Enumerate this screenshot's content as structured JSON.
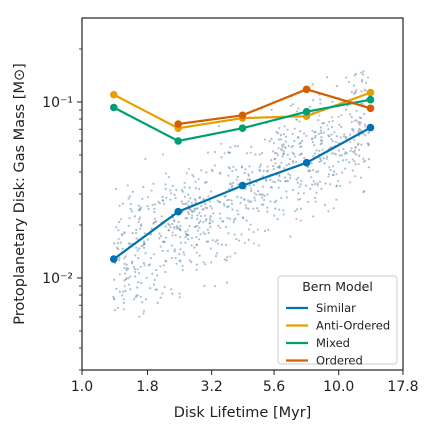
{
  "chart_data": {
    "type": "line",
    "title": "",
    "xlabel": "Disk Lifetime [Myr]",
    "ylabel": "Protoplanetary Disk: Gas Mass [M⊙]",
    "x_scale": "log",
    "y_scale": "log",
    "xlim": [
      1.0,
      17.8
    ],
    "ylim": [
      0.003,
      0.3
    ],
    "x_ticks": [
      1.0,
      1.8,
      3.2,
      5.6,
      10.0,
      17.8
    ],
    "x_tick_labels": [
      "1.0",
      "1.8",
      "3.2",
      "5.6",
      "10.0",
      "17.8"
    ],
    "y_ticks": [
      0.01,
      0.1
    ],
    "y_tick_labels": [
      "10⁻²",
      "10⁻¹"
    ],
    "grid": false,
    "legend": {
      "title": "Bern Model",
      "placement": "lower-right"
    },
    "series": [
      {
        "name": "Similar",
        "color": "#0072b2",
        "x": [
          1.33,
          2.37,
          4.22,
          7.5,
          13.3
        ],
        "y": [
          0.0128,
          0.0238,
          0.0335,
          0.0452,
          0.0715
        ]
      },
      {
        "name": "Anti-Ordered",
        "color": "#e69f00",
        "x": [
          1.33,
          2.37,
          4.22,
          7.5,
          13.3
        ],
        "y": [
          0.11,
          0.071,
          0.081,
          0.083,
          0.113
        ]
      },
      {
        "name": "Mixed",
        "color": "#009e73",
        "x": [
          1.33,
          2.37,
          4.22,
          7.5,
          13.3
        ],
        "y": [
          0.093,
          0.06,
          0.071,
          0.088,
          0.103
        ]
      },
      {
        "name": "Ordered",
        "color": "#d55e00",
        "x": [
          2.37,
          4.22,
          7.5,
          13.3
        ],
        "y": [
          0.075,
          0.084,
          0.118,
          0.092
        ]
      }
    ],
    "scatter_background": {
      "description_points_count": 900,
      "color": "#5f8ea6"
    }
  }
}
